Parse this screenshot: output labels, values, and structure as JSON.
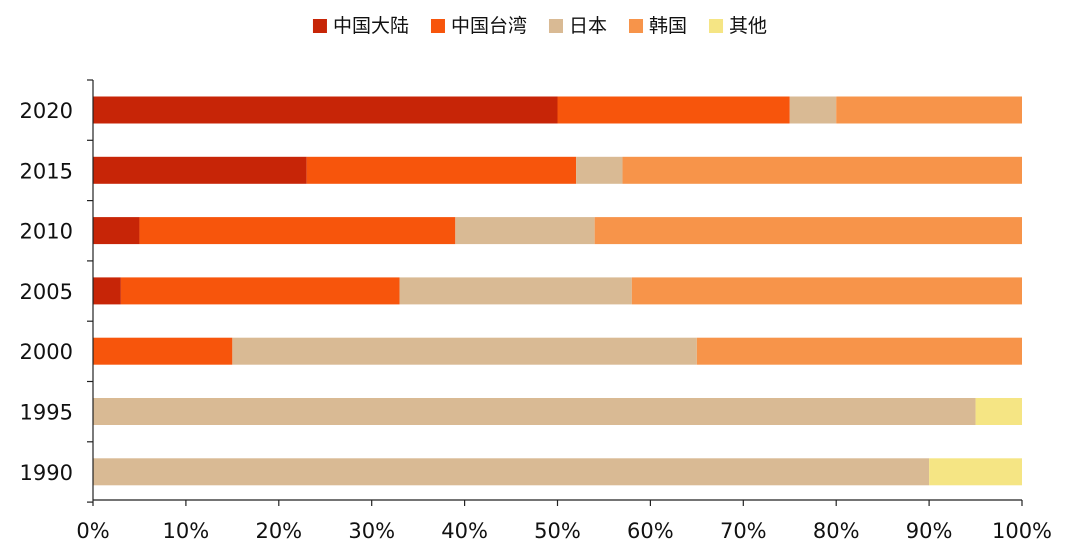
{
  "chart_data": {
    "type": "bar",
    "orientation": "horizontal",
    "stacked": true,
    "categories": [
      "2020",
      "2015",
      "2010",
      "2005",
      "2000",
      "1995",
      "1990"
    ],
    "series": [
      {
        "name": "中国大陆",
        "color": "#C72507",
        "values": [
          50,
          23,
          5,
          3,
          0,
          0,
          0
        ]
      },
      {
        "name": "中国台湾",
        "color": "#F7550C",
        "values": [
          25,
          29,
          34,
          30,
          15,
          0,
          0
        ]
      },
      {
        "name": "日本",
        "color": "#D9BA94",
        "values": [
          5,
          5,
          15,
          25,
          50,
          95,
          90
        ]
      },
      {
        "name": "韩国",
        "color": "#F7944A",
        "values": [
          20,
          43,
          46,
          42,
          35,
          0,
          0
        ]
      },
      {
        "name": "其他",
        "color": "#F5E584",
        "values": [
          0,
          0,
          0,
          0,
          0,
          5,
          10
        ]
      }
    ],
    "xlim": [
      0,
      100
    ],
    "xticks": [
      "0%",
      "10%",
      "20%",
      "30%",
      "40%",
      "50%",
      "60%",
      "70%",
      "80%",
      "90%",
      "100%"
    ],
    "legend_position": "top-center",
    "grid": false
  }
}
